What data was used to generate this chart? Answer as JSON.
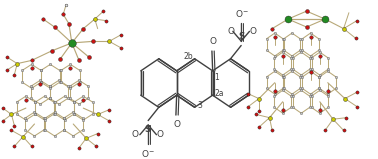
{
  "background_color": "#ffffff",
  "fig_width": 3.78,
  "fig_height": 1.59,
  "dpi": 100,
  "bond_color": "#b8a878",
  "bond_color_dark": "#555555",
  "atom_C": "#c8c8c8",
  "atom_C_dark": "#303030",
  "atom_O": "#cc1111",
  "atom_S": "#cccc00",
  "atom_RE": "#228b22",
  "atom_H": "#e0e0e0",
  "label_1": "1",
  "label_2a": "2a",
  "label_2b": "2b",
  "label_3": "3"
}
